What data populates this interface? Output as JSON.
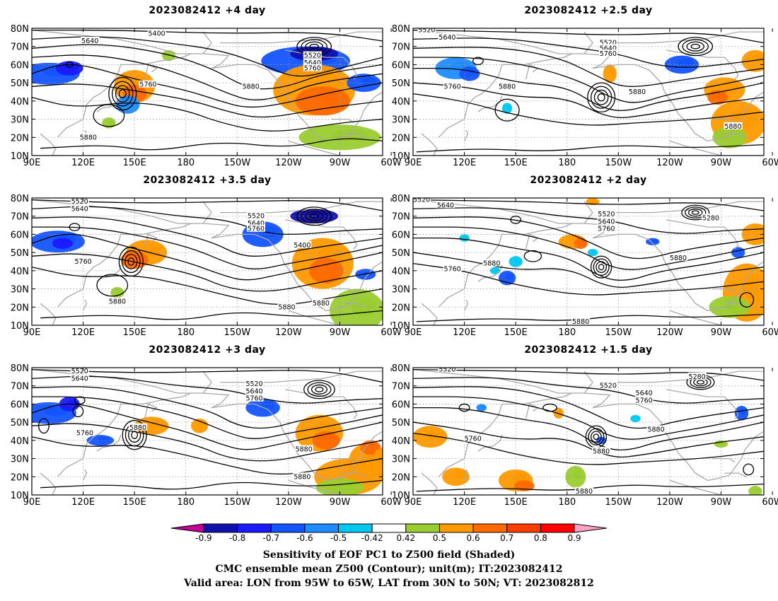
{
  "panels": [
    {
      "title": "2023082412 +4 day"
    },
    {
      "title": "2023082412 +2.5 day"
    },
    {
      "title": "2023082412 +3.5 day"
    },
    {
      "title": "2023082412 +2 day"
    },
    {
      "title": "2023082412 +3 day"
    },
    {
      "title": "2023082412 +1.5 day"
    }
  ],
  "axes": {
    "lat_labels": [
      "10N",
      "20N",
      "30N",
      "40N",
      "50N",
      "60N",
      "70N",
      "80N"
    ],
    "lon_labels": [
      "90E",
      "120E",
      "150E",
      "180",
      "150W",
      "120W",
      "90W",
      "60W"
    ]
  },
  "contour_labels": [
    [
      "5400",
      "5640",
      "5520",
      "5640",
      "5760",
      "5760",
      "5880",
      "5880"
    ],
    [
      "5520",
      "5640",
      "5520",
      "5640",
      "5760",
      "5760",
      "5880",
      "5880",
      "5880"
    ],
    [
      "5520",
      "5640",
      "5520",
      "5640",
      "5760",
      "5400",
      "5760",
      "5880",
      "5880",
      "5880"
    ],
    [
      "5520",
      "5640",
      "5520",
      "5640",
      "5760",
      "5280",
      "5760",
      "5880",
      "5880",
      "5880"
    ],
    [
      "5520",
      "5640",
      "5520",
      "5640",
      "5760",
      "5760",
      "5880",
      "5880",
      "5880"
    ],
    [
      "5520",
      "5520",
      "5640",
      "5760",
      "5280",
      "5760",
      "5880",
      "5880",
      "5880"
    ]
  ],
  "colorbar": {
    "ticks": [
      "-0.9",
      "-0.8",
      "-0.7",
      "-0.6",
      "-0.5",
      "-0.42",
      "0.42",
      "0.5",
      "0.6",
      "0.7",
      "0.8",
      "0.9"
    ],
    "colors": [
      "#c40096",
      "#1010b0",
      "#1a1aff",
      "#1454ff",
      "#1e8cff",
      "#00c8f0",
      "#ffffff",
      "#9acd32",
      "#ff9a00",
      "#ff6a00",
      "#ff3c00",
      "#ff0000",
      "#ffa0c8"
    ]
  },
  "caption": {
    "line1": "Sensitivity of EOF PC1 to Z500 field (Shaded)",
    "line2": "CMC ensemble mean Z500 (Contour); unit(m); IT:2023082412",
    "line3": "Valid area: LON from 95W to 65W, LAT from 30N to 50N; VT: 2023082812"
  }
}
